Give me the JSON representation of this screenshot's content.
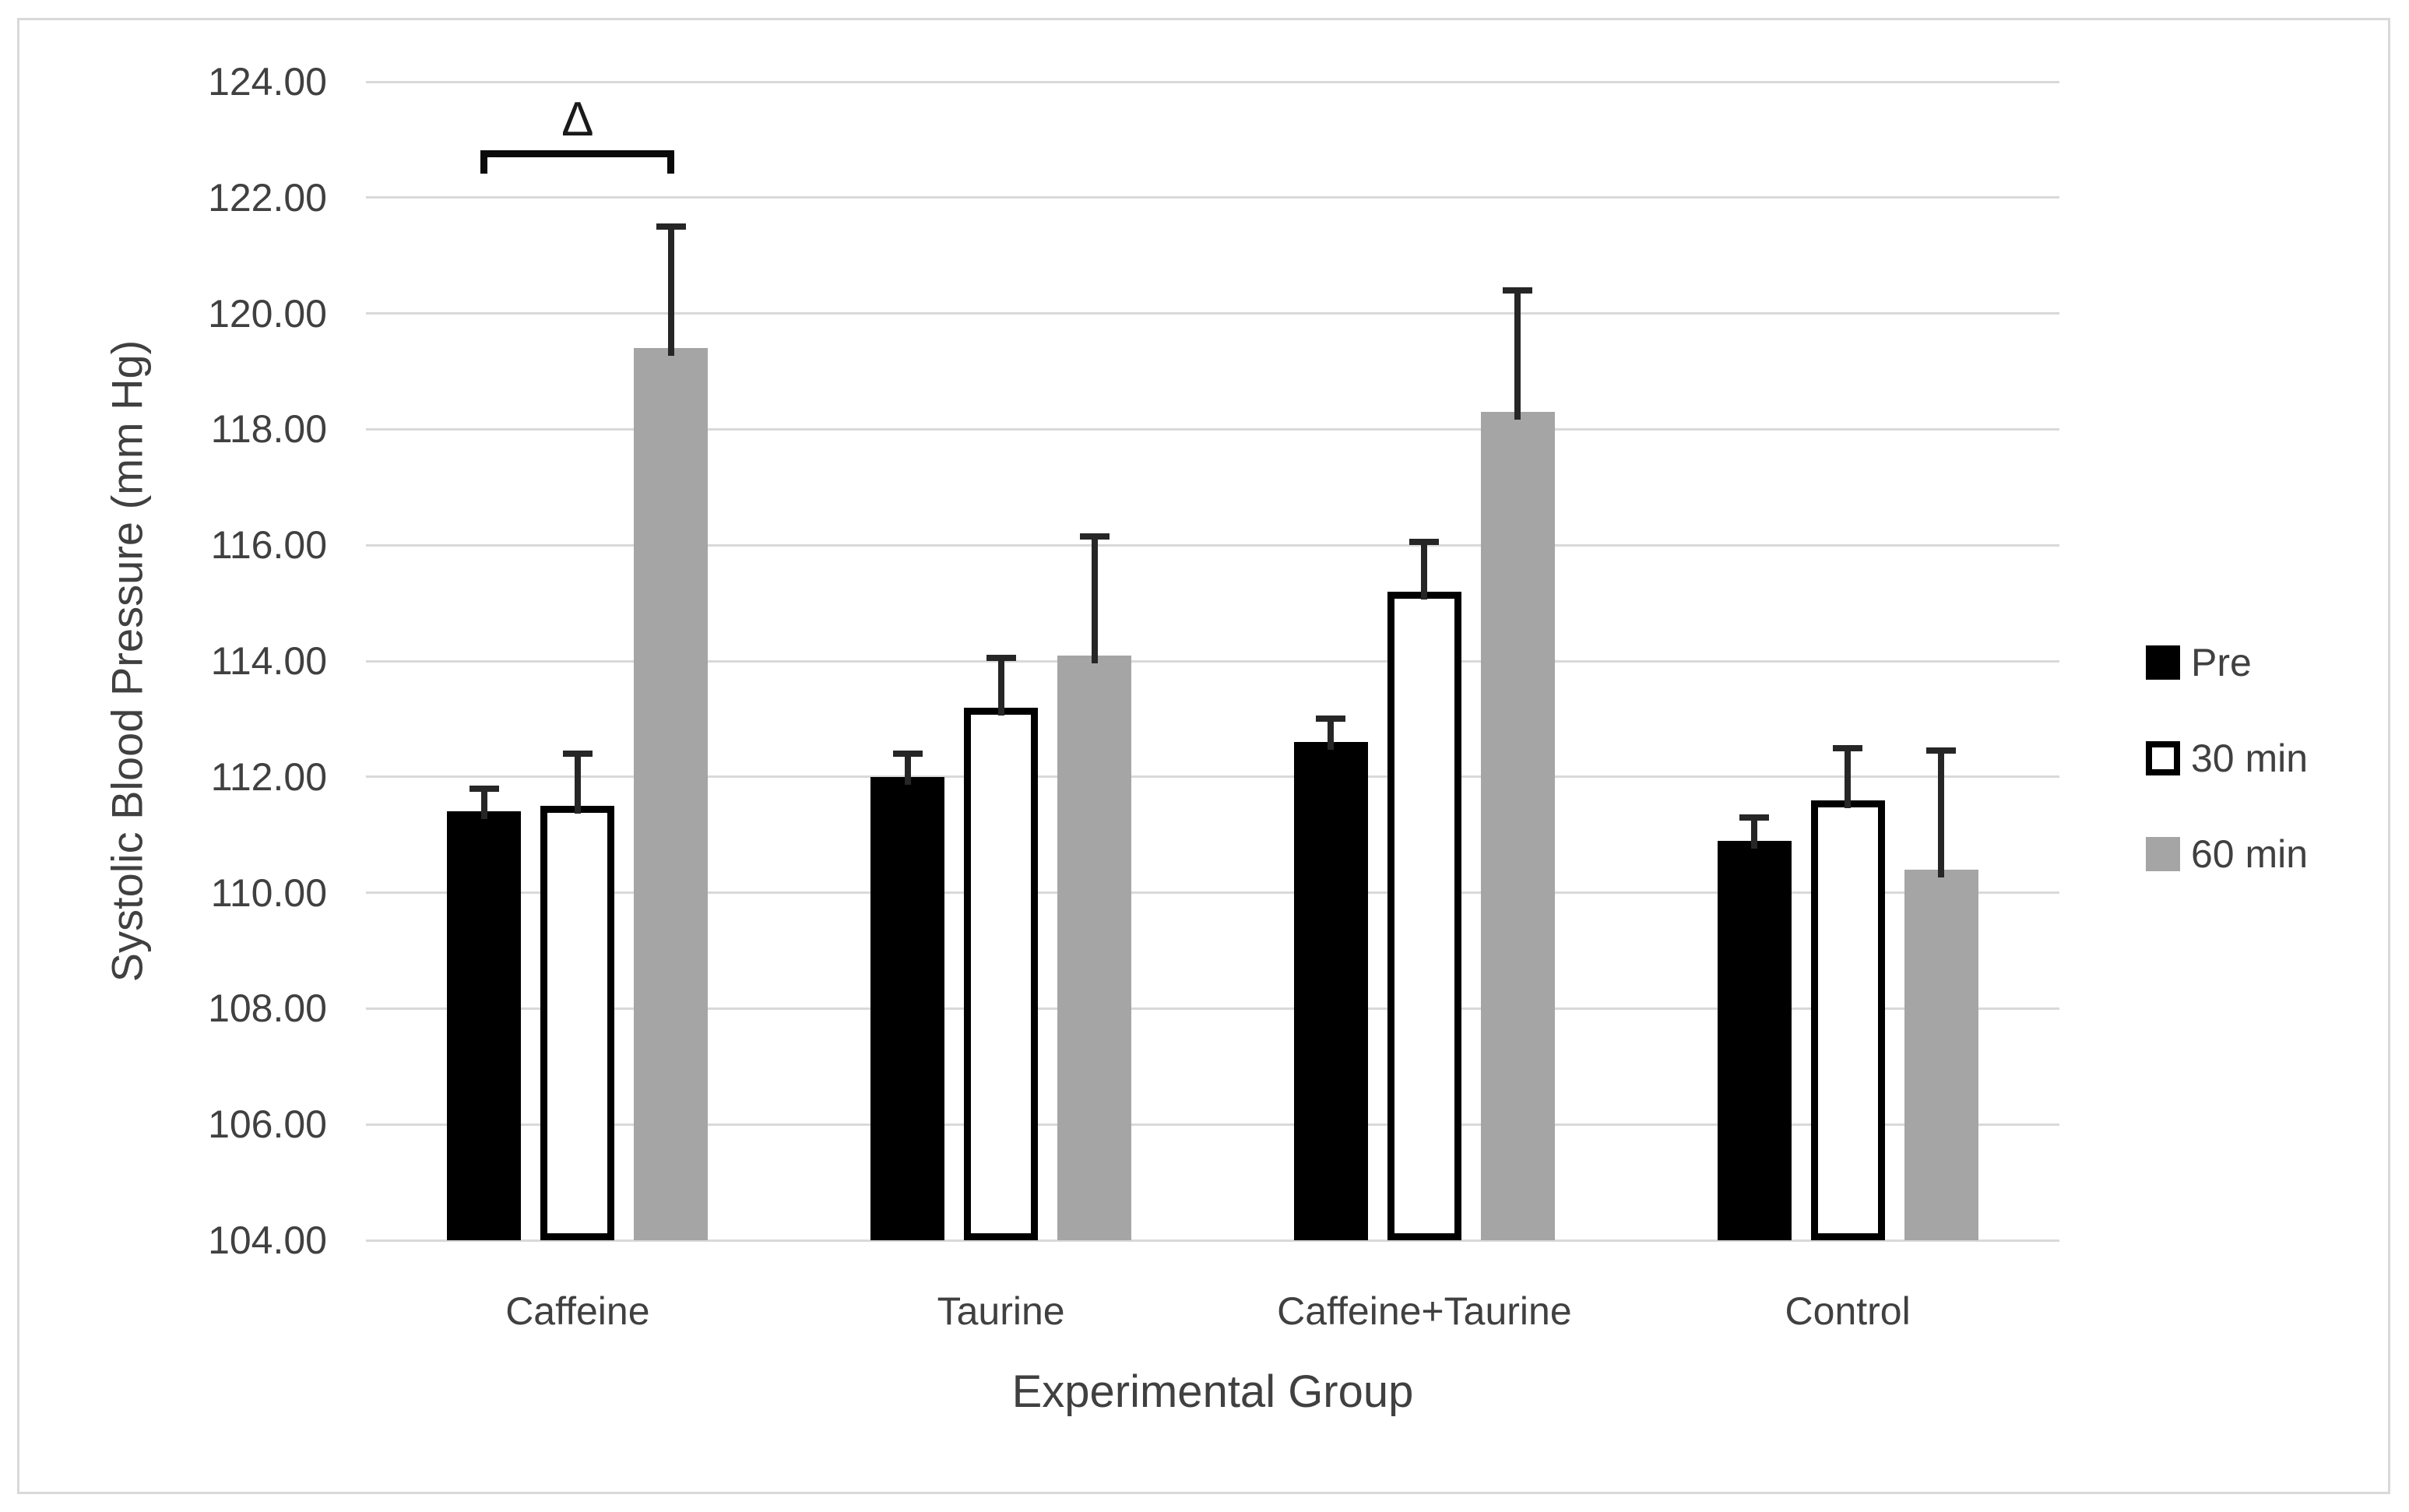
{
  "chart_data": {
    "type": "bar",
    "title": "",
    "xlabel": "Experimental Group",
    "ylabel": "Systolic Blood Pressure (mm Hg)",
    "categories": [
      "Caffeine",
      "Taurine",
      "Caffeine+Taurine",
      "Control"
    ],
    "series": [
      {
        "name": "Pre",
        "fill": "#000000",
        "border": "#000000",
        "values": [
          111.4,
          112.0,
          112.6,
          110.9
        ],
        "error_up": [
          0.4,
          0.4,
          0.4,
          0.4
        ]
      },
      {
        "name": "30 min",
        "fill": "#FFFFFF",
        "border": "#000000",
        "values": [
          111.5,
          113.2,
          115.2,
          111.6
        ],
        "error_up": [
          0.9,
          0.85,
          0.85,
          0.9
        ]
      },
      {
        "name": "60 min",
        "fill": "#A5A5A5",
        "border": "#A5A5A5",
        "values": [
          119.4,
          114.1,
          118.3,
          110.4
        ],
        "error_up": [
          2.1,
          2.05,
          2.1,
          2.05
        ]
      }
    ],
    "ylim": [
      104,
      124
    ],
    "ytick_step": 2,
    "ytick_decimals": 2,
    "grid": true,
    "legend_position": "right",
    "legend_labels": [
      "Pre",
      "30 min",
      "60 min"
    ],
    "annotation": {
      "symbol": "Δ",
      "category": "Caffeine",
      "from_series": "Pre",
      "to_series": "60 min",
      "meaning": "significance bracket over Caffeine group from Pre bar to 60 min bar"
    }
  },
  "colors": {
    "background": "#FFFFFF",
    "frame_border": "#D9D9D9",
    "gridline": "#D9D9D9",
    "axis_text": "#404040",
    "error_bar": "#262626",
    "annotation": "#0A0A0A",
    "bar_pre": "#000000",
    "bar_30min_fill": "#FFFFFF",
    "bar_30min_border": "#000000",
    "bar_60min": "#A5A5A5"
  }
}
